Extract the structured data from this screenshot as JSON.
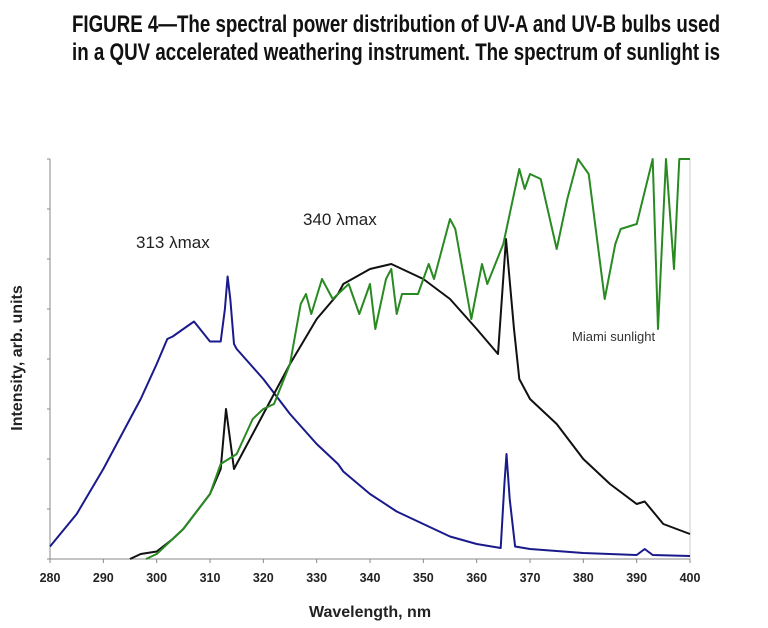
{
  "caption": {
    "line1": "FIGURE 4—The spectral power distribution of UV-A and UV-B bulbs used",
    "line2": "in a QUV accelerated weathering instrument. The spectrum of sunlight is"
  },
  "chart_data": {
    "type": "line",
    "title": "",
    "xlabel": "Wavelength, nm",
    "ylabel": "Intensity, arb. units",
    "xlim": [
      280,
      400
    ],
    "ylim": [
      0,
      8
    ],
    "xticks": [
      280,
      290,
      300,
      310,
      320,
      330,
      340,
      350,
      360,
      370,
      380,
      390,
      400
    ],
    "yticks_unlabeled_count": 8,
    "grid": false,
    "annotations": [
      "313 λmax",
      "340 λmax",
      "Miami sunlight"
    ],
    "series": [
      {
        "name": "313 λmax",
        "color": "#1a1a8c",
        "x": [
          280,
          285,
          290,
          295,
          297,
          300,
          302,
          303,
          305,
          307,
          310,
          312,
          312.8,
          313.3,
          313.8,
          314.5,
          315,
          320,
          325,
          330,
          334,
          335,
          340,
          345,
          350,
          355,
          360,
          364.5,
          365.2,
          365.6,
          366.2,
          367.2,
          370,
          380,
          390,
          391.5,
          393,
          400
        ],
        "y": [
          0.25,
          0.9,
          1.8,
          2.8,
          3.2,
          3.9,
          4.4,
          4.45,
          4.6,
          4.75,
          4.35,
          4.35,
          5.0,
          5.65,
          5.2,
          4.3,
          4.2,
          3.6,
          2.9,
          2.3,
          1.9,
          1.75,
          1.3,
          0.95,
          0.7,
          0.45,
          0.3,
          0.22,
          1.5,
          2.1,
          1.2,
          0.25,
          0.2,
          0.12,
          0.08,
          0.2,
          0.08,
          0.06
        ]
      },
      {
        "name": "340 λmax",
        "color": "#111111",
        "x": [
          295,
          297,
          300,
          303,
          305,
          310,
          312,
          313,
          314.5,
          316,
          320,
          325,
          330,
          334,
          335,
          340,
          344,
          350,
          355,
          360,
          364,
          365.5,
          367,
          368,
          370,
          375,
          380,
          385,
          390,
          391.5,
          395,
          400
        ],
        "y": [
          0,
          0.1,
          0.15,
          0.4,
          0.6,
          1.3,
          1.8,
          3.0,
          1.8,
          2.1,
          2.9,
          3.9,
          4.8,
          5.3,
          5.5,
          5.8,
          5.9,
          5.6,
          5.2,
          4.6,
          4.1,
          6.4,
          4.6,
          3.6,
          3.2,
          2.7,
          2.0,
          1.5,
          1.1,
          1.15,
          0.7,
          0.5
        ]
      },
      {
        "name": "Miami sunlight",
        "color": "#2a8a22",
        "x": [
          298,
          300,
          305,
          310,
          312,
          315,
          318,
          320,
          322,
          325,
          327,
          328,
          329,
          331,
          333,
          336,
          338,
          340,
          341,
          343,
          344,
          345,
          346,
          349,
          351,
          352,
          355,
          356,
          359,
          361,
          362,
          365,
          368,
          369,
          370,
          372,
          375,
          377,
          379,
          381,
          384,
          386,
          387,
          390,
          393,
          394,
          395.5,
          397,
          398,
          400
        ],
        "y": [
          0,
          0.1,
          0.6,
          1.3,
          1.9,
          2.1,
          2.8,
          3.0,
          3.1,
          3.9,
          5.1,
          5.3,
          4.9,
          5.6,
          5.2,
          5.5,
          4.9,
          5.5,
          4.6,
          5.6,
          5.8,
          4.9,
          5.3,
          5.3,
          5.9,
          5.6,
          6.8,
          6.6,
          4.8,
          5.9,
          5.5,
          6.3,
          7.8,
          7.4,
          7.7,
          7.6,
          6.2,
          7.2,
          8.0,
          7.7,
          5.2,
          6.3,
          6.6,
          6.7,
          8.0,
          4.6,
          8.0,
          5.8,
          8.0,
          8.0
        ]
      }
    ]
  }
}
